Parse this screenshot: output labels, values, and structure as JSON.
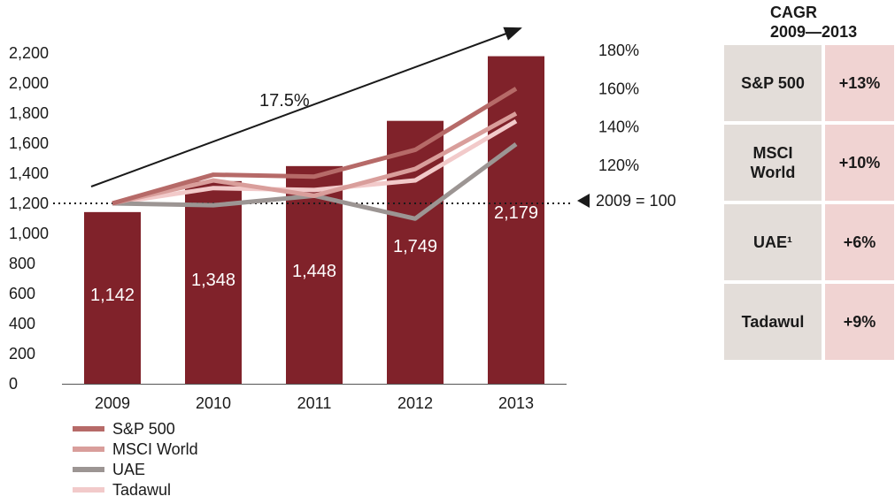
{
  "chart_data": {
    "type": "bar",
    "categories": [
      "2009",
      "2010",
      "2011",
      "2012",
      "2013"
    ],
    "values": [
      1142,
      1348,
      1448,
      1749,
      2179
    ],
    "bar_labels": [
      "1,142",
      "1,348",
      "1,448",
      "1,749",
      "2,179"
    ],
    "ylim": [
      0,
      2200
    ],
    "y_ticks": [
      "0",
      "200",
      "400",
      "600",
      "800",
      "1,000",
      "1,200",
      "1,400",
      "1,600",
      "1,800",
      "2,000",
      "2,200"
    ],
    "y2_ticks": [
      "180%",
      "160%",
      "140%",
      "120%"
    ],
    "y2_tick_values": [
      180,
      160,
      140,
      120
    ],
    "baseline_label": "2009 = 100",
    "baseline_value": 100,
    "trend_label": "17.5%",
    "lines": [
      {
        "name": "S&P 500",
        "color": "#b66a68",
        "values": [
          100,
          115,
          114,
          128,
          160
        ]
      },
      {
        "name": "MSCI World",
        "color": "#d99e9b",
        "values": [
          100,
          112,
          104,
          118,
          147
        ]
      },
      {
        "name": "UAE",
        "color": "#9c9593",
        "values": [
          100,
          99,
          104,
          92,
          131
        ]
      },
      {
        "name": "Tadawul",
        "color": "#f2caca",
        "values": [
          100,
          108,
          107,
          112,
          143
        ]
      }
    ],
    "colors": {
      "bar": "#80222a"
    }
  },
  "cagr": {
    "title_line1": "CAGR",
    "title_line2": "2009—2013",
    "rows": [
      {
        "name": "S&P 500",
        "value": "+13%"
      },
      {
        "name": "MSCI World",
        "value": "+10%"
      },
      {
        "name": "UAE¹",
        "value": "+6%"
      },
      {
        "name": "Tadawul",
        "value": "+9%"
      }
    ]
  }
}
